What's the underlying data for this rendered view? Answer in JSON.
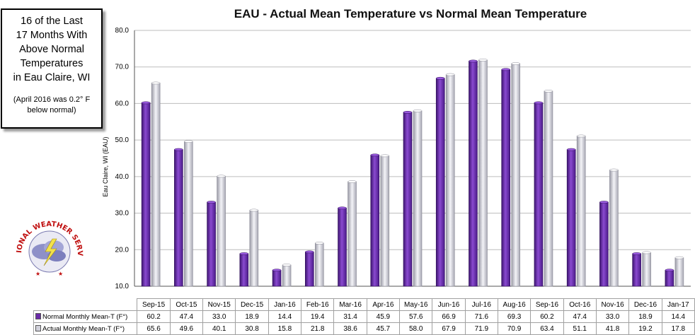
{
  "textbox": {
    "line1": "16 of the Last",
    "line2": "17 Months With",
    "line3": "Above Normal",
    "line4": "Temperatures",
    "line5": "in Eau Claire, WI",
    "note1": "(April 2016 was 0.2° F",
    "note2": "below normal)"
  },
  "logo_text": "NATIONAL WEATHER SERVICE",
  "colors": {
    "normal": "#6a2aa8",
    "actual": "#d0d0da"
  },
  "chart_data": {
    "type": "bar",
    "title": "EAU - Actual Mean Temperature vs Normal Mean Temperature",
    "ylabel": "Eau Claire, WI (EAU)",
    "xlabel": "",
    "ylim": [
      10,
      80
    ],
    "yticks": [
      "10.0",
      "20.0",
      "30.0",
      "40.0",
      "50.0",
      "60.0",
      "70.0",
      "80.0"
    ],
    "grid": true,
    "categories": [
      "Sep-15",
      "Oct-15",
      "Nov-15",
      "Dec-15",
      "Jan-16",
      "Feb-16",
      "Mar-16",
      "Apr-16",
      "May-16",
      "Jun-16",
      "Jul-16",
      "Aug-16",
      "Sep-16",
      "Oct-16",
      "Nov-16",
      "Dec-16",
      "Jan-17"
    ],
    "series": [
      {
        "name": "Normal Monthly Mean-T (F°)",
        "values": [
          60.2,
          47.4,
          33.0,
          18.9,
          14.4,
          19.4,
          31.4,
          45.9,
          57.6,
          66.9,
          71.6,
          69.3,
          60.2,
          47.4,
          33.0,
          18.9,
          14.4
        ]
      },
      {
        "name": "Actual Monthly Mean-T (F°)",
        "values": [
          65.6,
          49.6,
          40.1,
          30.8,
          15.8,
          21.8,
          38.6,
          45.7,
          58.0,
          67.9,
          71.9,
          70.9,
          63.4,
          51.1,
          41.8,
          19.2,
          17.8
        ]
      }
    ]
  }
}
